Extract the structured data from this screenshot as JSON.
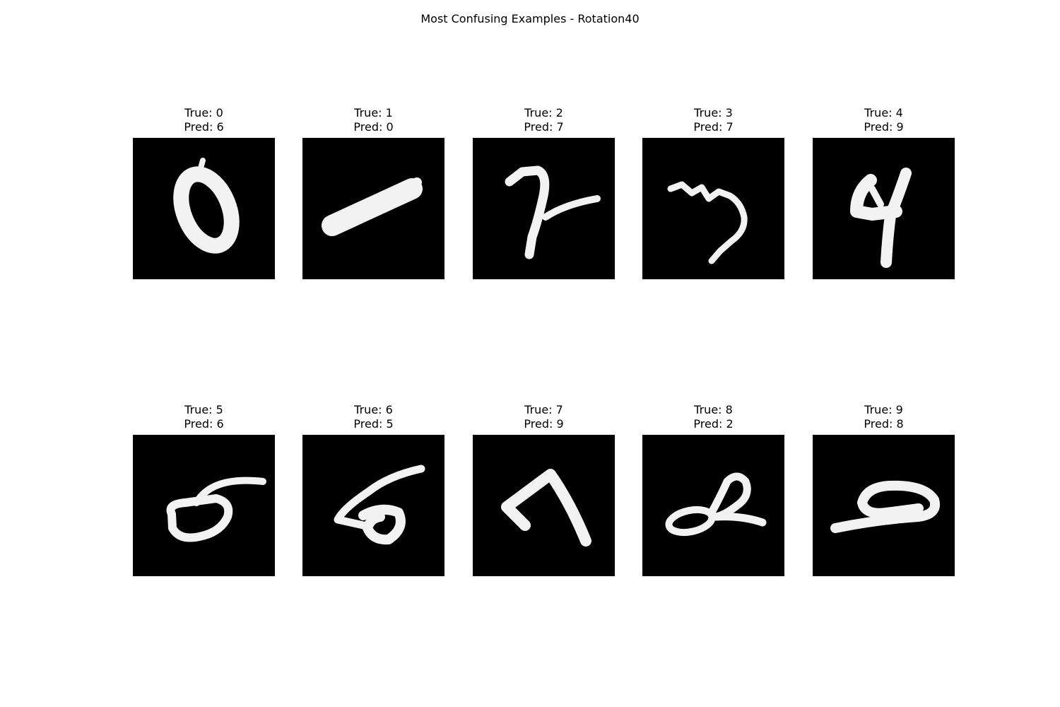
{
  "figure": {
    "title": "Most Confusing Examples - Rotation40",
    "colors": {
      "background": "#ffffff",
      "image_background": "#000000",
      "digit_stroke": "#f2f2f2"
    }
  },
  "panels": [
    {
      "true_label": "True: 0",
      "pred_label": "Pred: 6"
    },
    {
      "true_label": "True: 1",
      "pred_label": "Pred: 0"
    },
    {
      "true_label": "True: 2",
      "pred_label": "Pred: 7"
    },
    {
      "true_label": "True: 3",
      "pred_label": "Pred: 7"
    },
    {
      "true_label": "True: 4",
      "pred_label": "Pred: 9"
    },
    {
      "true_label": "True: 5",
      "pred_label": "Pred: 6"
    },
    {
      "true_label": "True: 6",
      "pred_label": "Pred: 5"
    },
    {
      "true_label": "True: 7",
      "pred_label": "Pred: 9"
    },
    {
      "true_label": "True: 8",
      "pred_label": "Pred: 2"
    },
    {
      "true_label": "True: 9",
      "pred_label": "Pred: 8"
    }
  ]
}
